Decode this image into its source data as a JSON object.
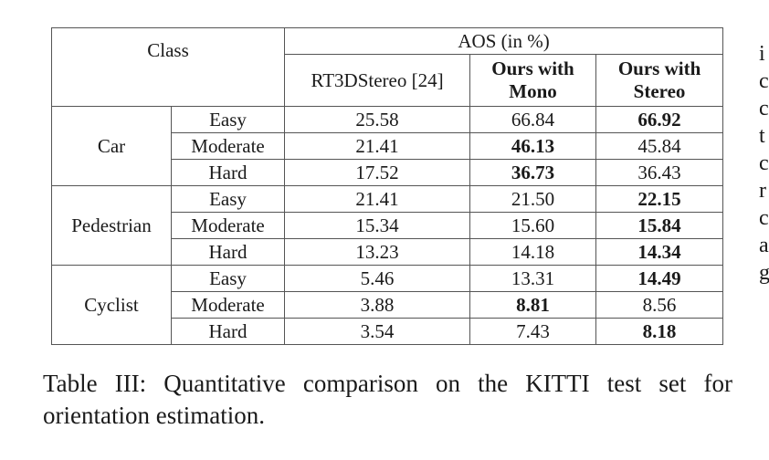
{
  "table": {
    "class_header": "Class",
    "aos_header": "AOS (in %)",
    "method_headers": [
      "RT3DStereo [24]",
      "Ours with Mono",
      "Ours with Stereo"
    ],
    "groups": [
      {
        "class": "Car",
        "rows": [
          {
            "difficulty": "Easy",
            "rt3d": "25.58",
            "mono": "66.84",
            "stereo": "66.92"
          },
          {
            "difficulty": "Moderate",
            "rt3d": "21.41",
            "mono": "46.13",
            "stereo": "45.84"
          },
          {
            "difficulty": "Hard",
            "rt3d": "17.52",
            "mono": "36.73",
            "stereo": "36.43"
          }
        ]
      },
      {
        "class": "Pedestrian",
        "rows": [
          {
            "difficulty": "Easy",
            "rt3d": "21.41",
            "mono": "21.50",
            "stereo": "22.15"
          },
          {
            "difficulty": "Moderate",
            "rt3d": "15.34",
            "mono": "15.60",
            "stereo": "15.84"
          },
          {
            "difficulty": "Hard",
            "rt3d": "13.23",
            "mono": "14.18",
            "stereo": "14.34"
          }
        ]
      },
      {
        "class": "Cyclist",
        "rows": [
          {
            "difficulty": "Easy",
            "rt3d": "5.46",
            "mono": "13.31",
            "stereo": "14.49"
          },
          {
            "difficulty": "Moderate",
            "rt3d": "3.88",
            "mono": "8.81",
            "stereo": "8.56"
          },
          {
            "difficulty": "Hard",
            "rt3d": "3.54",
            "mono": "7.43",
            "stereo": "8.18"
          }
        ]
      }
    ]
  },
  "caption": "Table III: Quantitative comparison on the KITTI test set for orientation estimation.",
  "right_column_fragments": [
    "i",
    "c",
    "c",
    "t",
    "c",
    "r",
    "c",
    "a",
    "g"
  ]
}
